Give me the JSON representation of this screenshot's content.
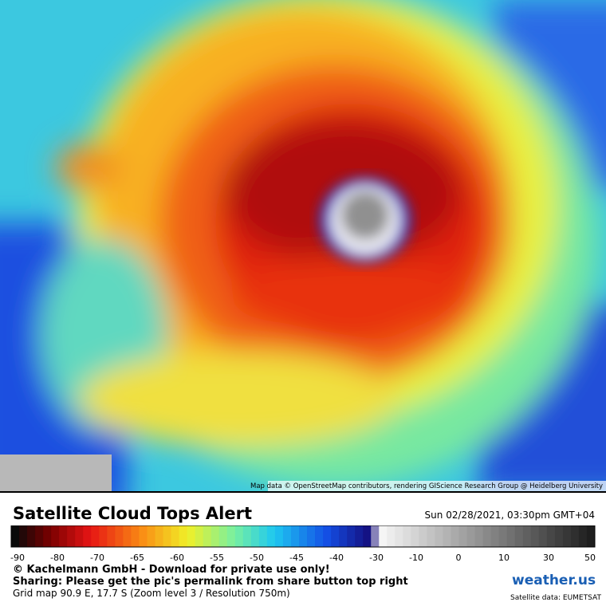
{
  "map": {
    "attribution": "Map data © OpenStreetMap contributors, rendering GIScience Research Group @ Heidelberg University"
  },
  "footer": {
    "title": "Satellite Cloud Tops Alert",
    "datetime": "Sun 02/28/2021, 03:30pm GMT+04",
    "colorbar_ticks": [
      -90,
      -80,
      -70,
      -65,
      -60,
      -55,
      -50,
      -45,
      -40,
      -30,
      -10,
      0,
      10,
      30,
      50
    ],
    "credit": "© Kachelmann GmbH - Download for private use only!",
    "sharing": "Sharing: Please get the pic's permalink from share button top right",
    "grid": "Grid map 90.9 E, 17.7 S (Zoom level 3 / Resolution 750m)",
    "logo": "weather.us",
    "source": "Satellite data: EUMETSAT"
  }
}
